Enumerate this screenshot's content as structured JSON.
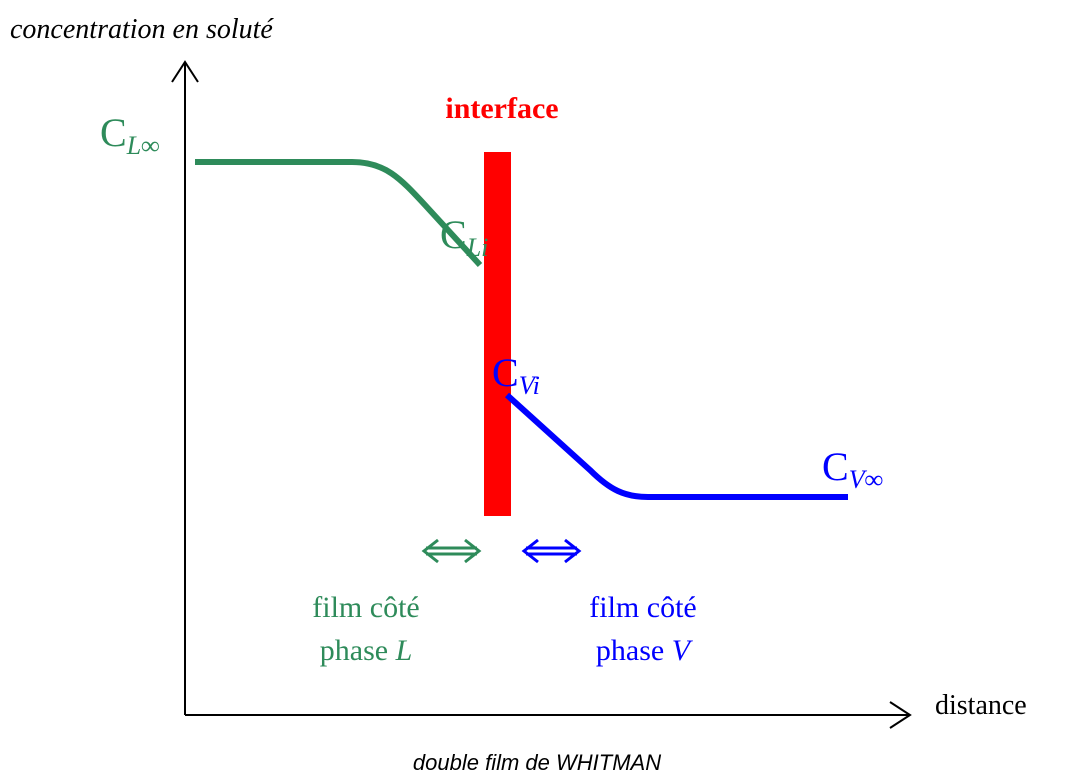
{
  "y_axis_label": "concentration en soluté",
  "x_axis_label": "distance",
  "interface_label": "interface",
  "labels": {
    "c_l_inf": {
      "main": "C",
      "sub": "L∞"
    },
    "c_li": {
      "main": "C",
      "sub": "Li"
    },
    "c_vi": {
      "main": "C",
      "sub": "Vi"
    },
    "c_v_inf": {
      "main": "C",
      "sub": "V∞"
    }
  },
  "film_l": {
    "line1": "film côté",
    "line2": "phase ",
    "var": "L"
  },
  "film_v": {
    "line1": "film côté",
    "line2": "phase ",
    "var": "V"
  },
  "caption": "double film de WHITMAN"
}
